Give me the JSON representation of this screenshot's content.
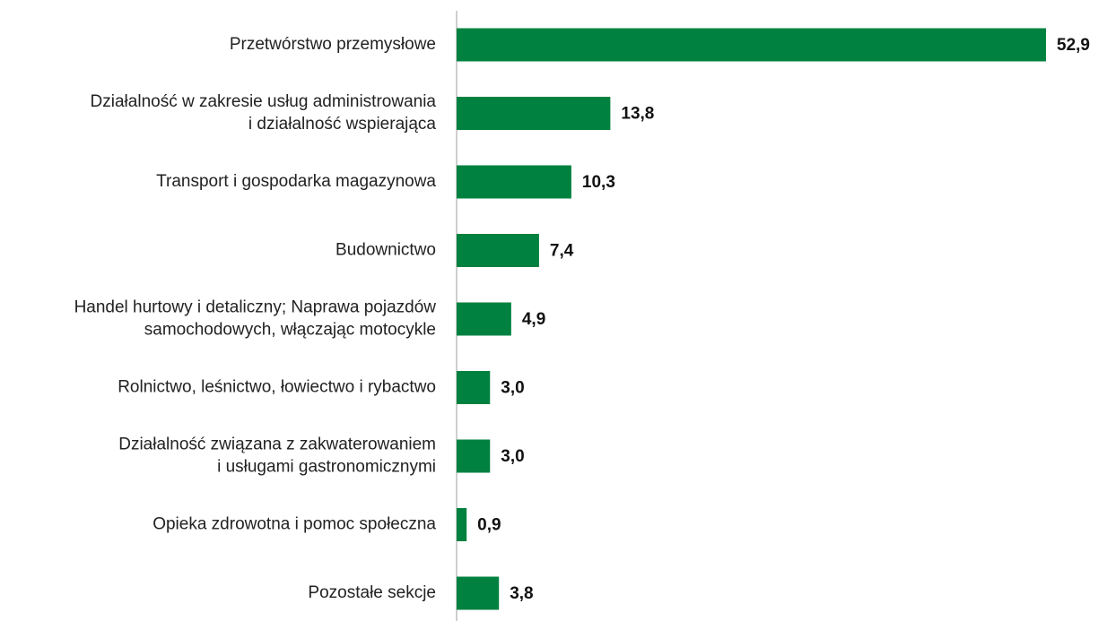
{
  "chart_data": {
    "type": "bar",
    "orientation": "horizontal",
    "categories": [
      [
        "Przetwórstwo przemysłowe"
      ],
      [
        "Działalność w zakresie usług administrowania",
        "i działalność wspierająca"
      ],
      [
        "Transport i gospodarka magazynowa"
      ],
      [
        "Budownictwo"
      ],
      [
        "Handel hurtowy i detaliczny; Naprawa pojazdów",
        "samochodowych, włączając motocykle"
      ],
      [
        "Rolnictwo, leśnictwo, łowiectwo i rybactwo"
      ],
      [
        "Działalność związana z zakwaterowaniem",
        "i usługami gastronomicznymi"
      ],
      [
        "Opieka zdrowotna i pomoc społeczna"
      ],
      [
        "Pozostałe sekcje"
      ]
    ],
    "values": [
      52.9,
      13.8,
      10.3,
      7.4,
      4.9,
      3.0,
      3.0,
      0.9,
      3.8
    ],
    "value_labels": [
      "52,9",
      "13,8",
      "10,3",
      "7,4",
      "4,9",
      "3,0",
      "3,0",
      "0,9",
      "3,8"
    ],
    "color": "#00813f"
  }
}
